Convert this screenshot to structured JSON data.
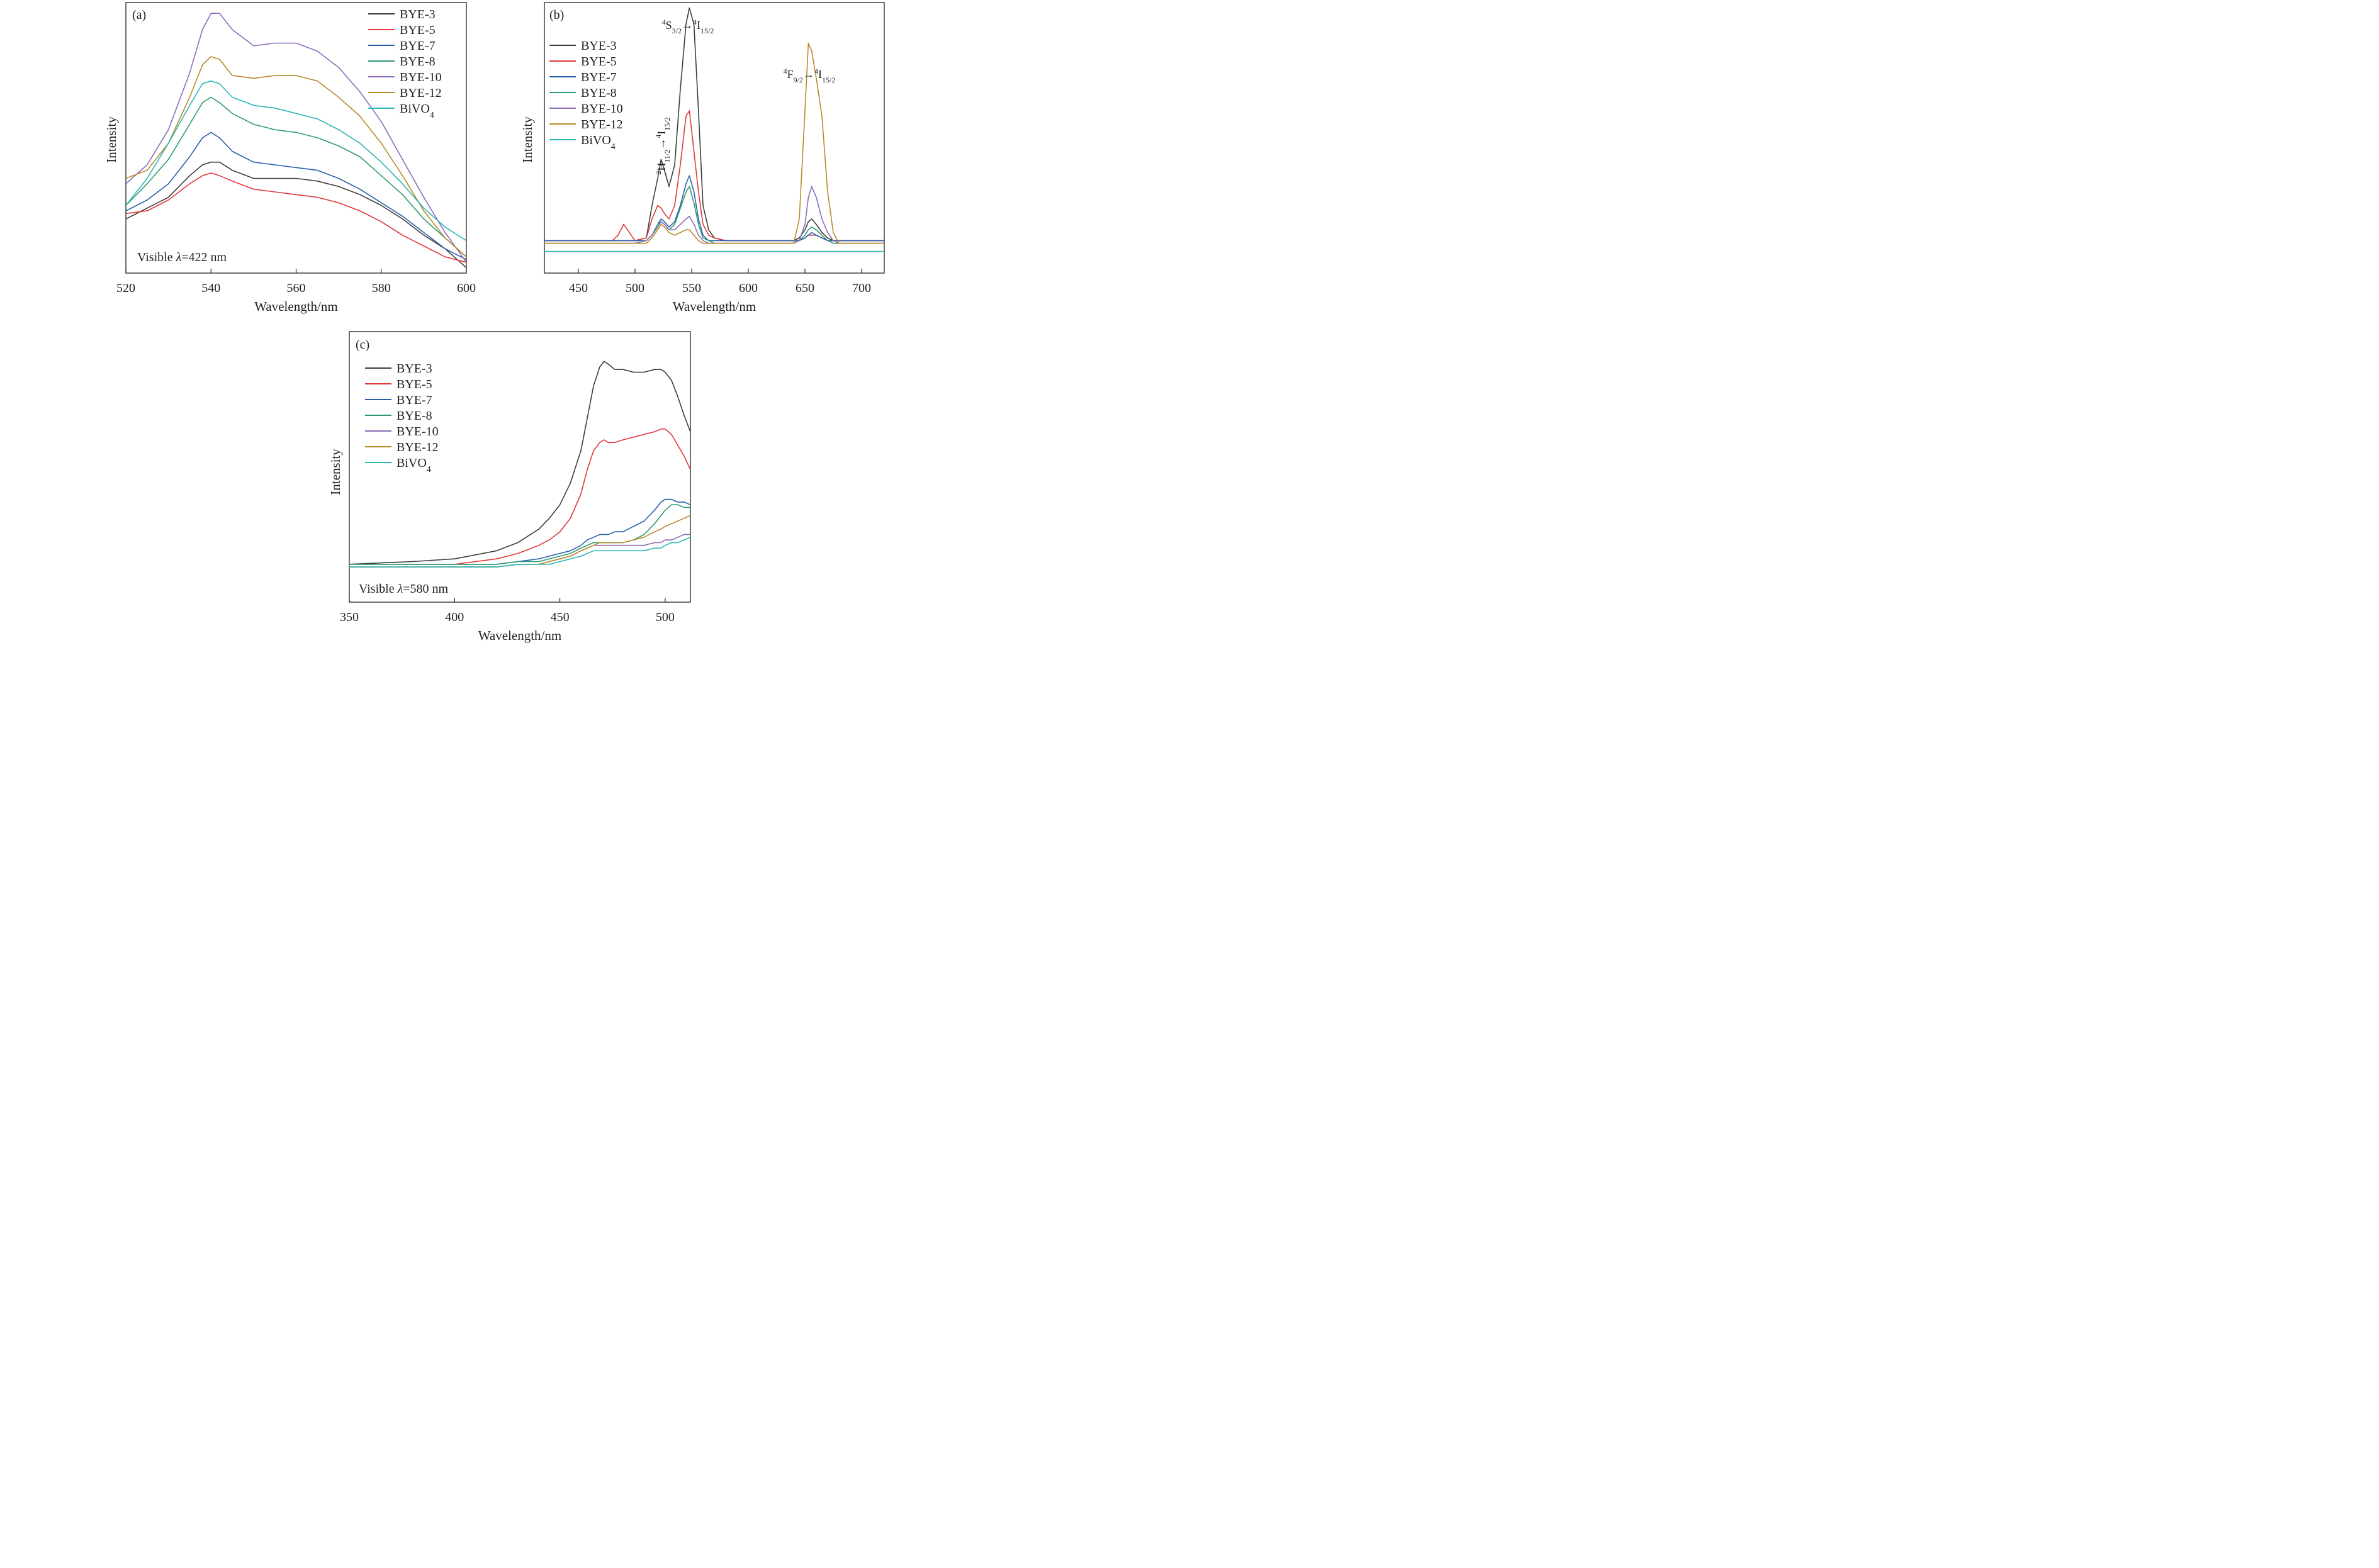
{
  "colors": {
    "BYE-3": "#3c3c3c",
    "BYE-5": "#e0383b",
    "BYE-7": "#2a5eac",
    "BYE-8": "#2e9a6c",
    "BYE-10": "#8c6bb9",
    "BYE-12": "#b88a2a",
    "BiVO4": "#2bb5b5"
  },
  "chart_data": [
    {
      "panel": "(a)",
      "type": "line",
      "xlabel": "Wavelength/nm",
      "ylabel": "Intensity",
      "xlim": [
        520,
        600
      ],
      "ylim": [
        0,
        100
      ],
      "xticks": [
        520,
        540,
        560,
        580,
        600
      ],
      "y_tick_labels": false,
      "legend_position": "top-right",
      "annotation": "Visible λ=422 nm",
      "annotation_text": "Visible ",
      "annotation_symbol": "λ",
      "annotation_value": "=422 nm",
      "x": [
        520,
        525,
        530,
        535,
        538,
        540,
        542,
        545,
        550,
        555,
        560,
        565,
        570,
        575,
        580,
        585,
        590,
        595,
        600
      ],
      "series": [
        {
          "name": "BYE-3",
          "label": "BYE-3",
          "values": [
            20,
            24,
            28,
            36,
            40,
            41,
            41,
            38,
            35,
            35,
            35,
            34,
            32,
            29,
            25,
            20,
            14,
            9,
            2
          ]
        },
        {
          "name": "BYE-5",
          "label": "BYE-5",
          "values": [
            22,
            23,
            27,
            33,
            36,
            37,
            36,
            34,
            31,
            30,
            29,
            28,
            26,
            23,
            19,
            14,
            10,
            6,
            4
          ]
        },
        {
          "name": "BYE-7",
          "label": "BYE-7",
          "values": [
            23,
            27,
            33,
            43,
            50,
            52,
            50,
            45,
            41,
            40,
            39,
            38,
            35,
            31,
            26,
            21,
            15,
            9,
            5
          ]
        },
        {
          "name": "BYE-8",
          "label": "BYE-8",
          "values": [
            25,
            33,
            42,
            55,
            63,
            65,
            63,
            59,
            55,
            53,
            52,
            50,
            47,
            43,
            36,
            29,
            20,
            13,
            6
          ]
        },
        {
          "name": "BYE-10",
          "label": "BYE-10",
          "values": [
            33,
            40,
            53,
            74,
            90,
            96,
            96,
            90,
            84,
            85,
            85,
            82,
            76,
            67,
            56,
            42,
            28,
            15,
            4
          ]
        },
        {
          "name": "BYE-12",
          "label": "BYE-12",
          "values": [
            35,
            38,
            48,
            65,
            77,
            80,
            79,
            73,
            72,
            73,
            73,
            71,
            65,
            58,
            48,
            36,
            23,
            13,
            6
          ]
        },
        {
          "name": "BiVO4",
          "label": "BiVO",
          "label_sub": "4",
          "values": [
            25,
            35,
            48,
            62,
            70,
            71,
            70,
            65,
            62,
            61,
            59,
            57,
            53,
            48,
            41,
            33,
            24,
            17,
            12
          ]
        }
      ]
    },
    {
      "panel": "(b)",
      "type": "line",
      "xlabel": "Wavelength/nm",
      "ylabel": "Intensity",
      "xlim": [
        420,
        720
      ],
      "ylim": [
        0,
        100
      ],
      "xticks": [
        450,
        500,
        550,
        600,
        650,
        700
      ],
      "y_tick_labels": false,
      "legend_position": "left",
      "annotations": [
        {
          "text": "⁴S₃/₂→⁴I₁₅/₂",
          "p1": "4",
          "p2": "S",
          "p3": "3/2",
          "p4": "→",
          "p5": "4",
          "p6": "I",
          "p7": "15/2",
          "near_x": 548,
          "orientation": "horizontal"
        },
        {
          "text": "²H₁₁/₂→⁴I₁₅/₂",
          "p1": "2",
          "p2": "H",
          "p3": "11/2",
          "p4": "→",
          "p5": "4",
          "p6": "I",
          "p7": "15/2",
          "near_x": 522,
          "orientation": "vertical"
        },
        {
          "text": "⁴F₉/₂→⁴I₁₅/₂",
          "p1": "4",
          "p2": "F",
          "p3": "9/2",
          "p4": "→",
          "p5": "4",
          "p6": "I",
          "p7": "15/2",
          "near_x": 655,
          "orientation": "horizontal"
        }
      ],
      "x": [
        420,
        470,
        480,
        485,
        490,
        500,
        510,
        515,
        520,
        523,
        526,
        530,
        535,
        540,
        545,
        548,
        552,
        556,
        560,
        565,
        570,
        580,
        600,
        620,
        640,
        645,
        650,
        653,
        656,
        660,
        665,
        670,
        675,
        680,
        700,
        720
      ],
      "series": [
        {
          "name": "BYE-3",
          "label": "BYE-3",
          "values": [
            12,
            12,
            12,
            12,
            12,
            12,
            13,
            25,
            35,
            42,
            38,
            32,
            40,
            68,
            92,
            98,
            92,
            60,
            25,
            16,
            13,
            12,
            12,
            12,
            12,
            13,
            16,
            19,
            20,
            18,
            15,
            13,
            12,
            12,
            12,
            12
          ]
        },
        {
          "name": "BYE-5",
          "label": "BYE-5",
          "values": [
            12,
            12,
            12,
            14,
            18,
            12,
            13,
            20,
            25,
            24,
            22,
            20,
            25,
            40,
            58,
            60,
            45,
            30,
            18,
            14,
            13,
            12,
            12,
            12,
            12,
            12,
            13,
            14,
            14,
            14,
            13,
            12,
            12,
            12,
            12,
            12
          ]
        },
        {
          "name": "BYE-7",
          "label": "BYE-7",
          "values": [
            12,
            12,
            12,
            12,
            12,
            12,
            12,
            14,
            18,
            20,
            19,
            17,
            19,
            25,
            33,
            36,
            30,
            20,
            14,
            12,
            12,
            12,
            12,
            12,
            12,
            12,
            13,
            14,
            15,
            14,
            13,
            12,
            12,
            12,
            12,
            12
          ]
        },
        {
          "name": "BYE-8",
          "label": "BYE-8",
          "values": [
            11,
            11,
            11,
            11,
            11,
            11,
            12,
            14,
            18,
            19,
            18,
            16,
            18,
            24,
            30,
            32,
            26,
            18,
            13,
            12,
            11,
            11,
            11,
            11,
            11,
            12,
            14,
            16,
            17,
            16,
            14,
            12,
            11,
            11,
            11,
            11
          ]
        },
        {
          "name": "BYE-10",
          "label": "BYE-10",
          "values": [
            11,
            11,
            11,
            11,
            11,
            11,
            12,
            14,
            17,
            19,
            18,
            16,
            16,
            18,
            20,
            21,
            18,
            14,
            12,
            11,
            11,
            11,
            11,
            11,
            11,
            12,
            18,
            28,
            32,
            28,
            20,
            15,
            12,
            11,
            11,
            11
          ]
        },
        {
          "name": "BYE-12",
          "label": "BYE-12",
          "values": [
            11,
            11,
            11,
            11,
            11,
            11,
            11,
            13,
            16,
            18,
            17,
            15,
            14,
            15,
            16,
            16,
            14,
            12,
            11,
            11,
            11,
            11,
            11,
            11,
            11,
            20,
            60,
            85,
            82,
            72,
            58,
            30,
            15,
            11,
            11,
            11
          ]
        },
        {
          "name": "BiVO4",
          "label": "BiVO",
          "label_sub": "4",
          "values": [
            8,
            8,
            8,
            8,
            8,
            8,
            8,
            8,
            8,
            8,
            8,
            8,
            8,
            8,
            8,
            8,
            8,
            8,
            8,
            8,
            8,
            8,
            8,
            8,
            8,
            8,
            8,
            8,
            8,
            8,
            8,
            8,
            8,
            8,
            8,
            8
          ]
        }
      ]
    },
    {
      "panel": "(c)",
      "type": "line",
      "xlabel": "Wavelength/nm",
      "ylabel": "Intensity",
      "xlim": [
        350,
        512
      ],
      "ylim": [
        0,
        100
      ],
      "xticks": [
        350,
        400,
        450,
        500
      ],
      "y_tick_labels": false,
      "legend_position": "top-left",
      "annotation": "Visible λ=580 nm",
      "annotation_text": "Visible ",
      "annotation_symbol": "λ",
      "annotation_value": "=580 nm",
      "x": [
        350,
        380,
        400,
        420,
        430,
        440,
        445,
        450,
        455,
        460,
        463,
        466,
        469,
        471,
        473,
        476,
        480,
        485,
        490,
        495,
        498,
        500,
        503,
        506,
        509,
        512
      ],
      "series": [
        {
          "name": "BYE-3",
          "label": "BYE-3",
          "values": [
            14,
            15,
            16,
            19,
            22,
            27,
            31,
            36,
            44,
            56,
            68,
            80,
            87,
            89,
            88,
            86,
            86,
            85,
            85,
            86,
            86,
            85,
            82,
            76,
            69,
            63
          ]
        },
        {
          "name": "BYE-5",
          "label": "BYE-5",
          "values": [
            14,
            14,
            14,
            16,
            18,
            21,
            23,
            26,
            31,
            40,
            49,
            56,
            59,
            60,
            59,
            59,
            60,
            61,
            62,
            63,
            64,
            64,
            62,
            58,
            54,
            49
          ]
        },
        {
          "name": "BYE-7",
          "label": "BYE-7",
          "values": [
            14,
            14,
            14,
            14,
            15,
            16,
            17,
            18,
            19,
            21,
            23,
            24,
            25,
            25,
            25,
            26,
            26,
            28,
            30,
            34,
            37,
            38,
            38,
            37,
            37,
            36
          ]
        },
        {
          "name": "BYE-8",
          "label": "BYE-8",
          "values": [
            14,
            14,
            14,
            14,
            15,
            15,
            16,
            17,
            18,
            20,
            21,
            22,
            22,
            22,
            22,
            22,
            22,
            23,
            25,
            29,
            32,
            34,
            36,
            36,
            35,
            35
          ]
        },
        {
          "name": "BYE-10",
          "label": "BYE-10",
          "values": [
            13,
            13,
            13,
            13,
            14,
            14,
            15,
            16,
            17,
            19,
            20,
            21,
            21,
            21,
            21,
            21,
            21,
            21,
            21,
            22,
            22,
            23,
            23,
            24,
            25,
            25
          ]
        },
        {
          "name": "BYE-12",
          "label": "BYE-12",
          "values": [
            13,
            13,
            13,
            13,
            14,
            14,
            15,
            16,
            17,
            19,
            20,
            21,
            22,
            22,
            22,
            22,
            22,
            23,
            24,
            26,
            27,
            28,
            29,
            30,
            31,
            32
          ]
        },
        {
          "name": "BiVO4",
          "label": "BiVO",
          "label_sub": "4",
          "values": [
            13,
            13,
            13,
            13,
            14,
            14,
            14,
            15,
            16,
            17,
            18,
            19,
            19,
            19,
            19,
            19,
            19,
            19,
            19,
            20,
            20,
            21,
            22,
            22,
            23,
            24
          ]
        }
      ]
    }
  ]
}
